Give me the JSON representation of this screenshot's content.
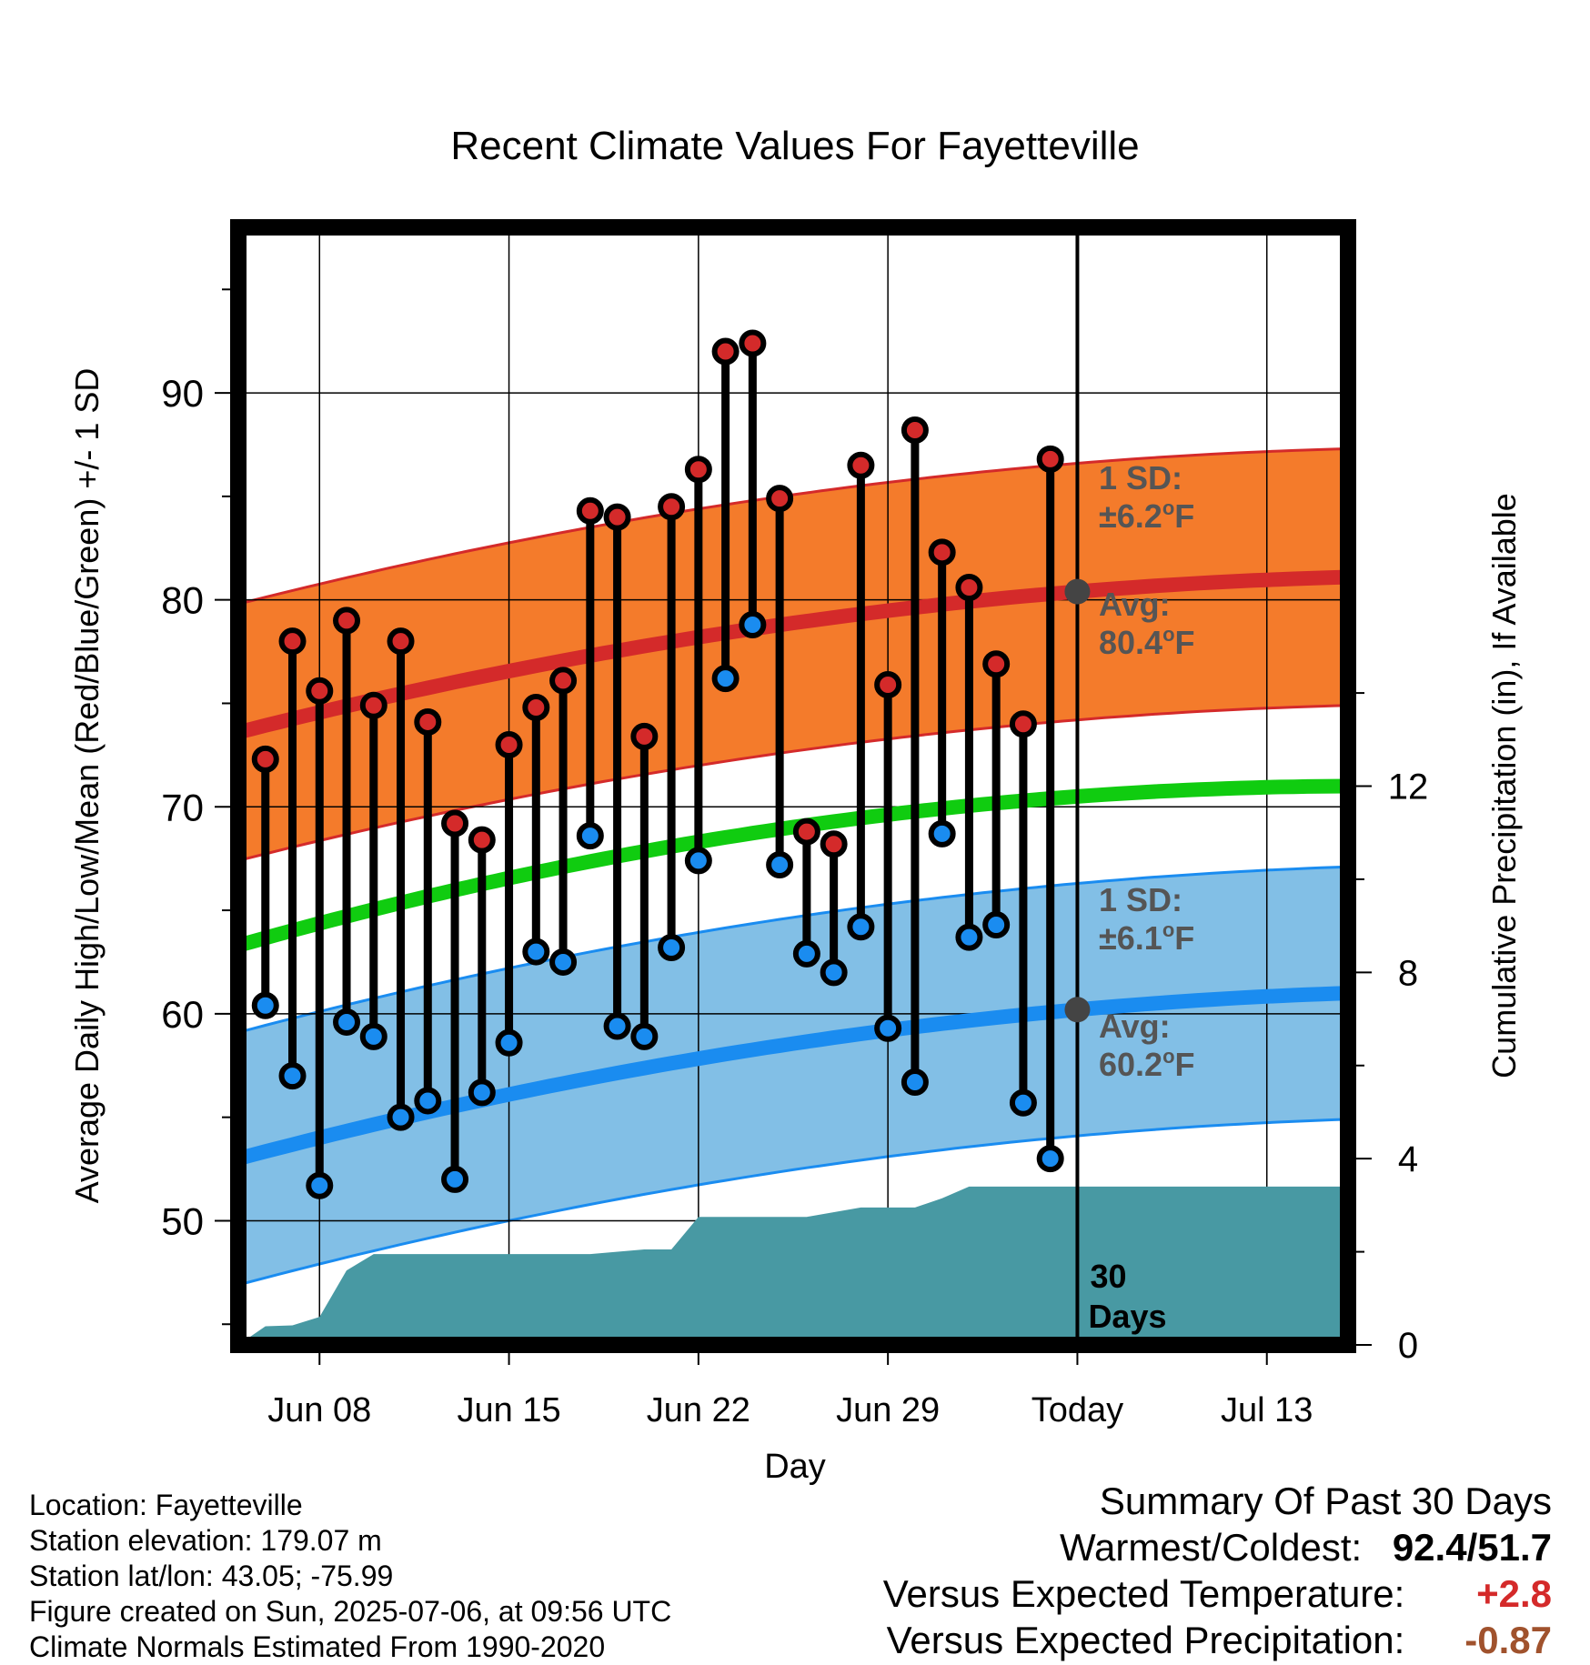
{
  "chart_data": {
    "type": "line",
    "title": "Recent Climate Values For Fayetteville",
    "xlabel": "Day",
    "ylabel": "Average Daily High/Low/Mean (Red/Blue/Green) +/- 1 SD",
    "y2label": "Cumulative Precipitation (in), If Available",
    "x_ticks": [
      "Jun 08",
      "Jun 15",
      "Jun 22",
      "Jun 29",
      "Today",
      "Jul 13"
    ],
    "y_ticks": [
      "50",
      "60",
      "70",
      "80",
      "90"
    ],
    "y2_ticks": [
      "0",
      "4",
      "8",
      "12"
    ],
    "ylim": [
      44,
      98
    ],
    "y2lim": [
      0,
      24
    ],
    "grid": true,
    "x_range_days": [
      -31,
      10
    ],
    "today_index": 0,
    "daily": {
      "day_offset": [
        -30,
        -29,
        -28,
        -27,
        -26,
        -25,
        -24,
        -23,
        -22,
        -21,
        -20,
        -19,
        -18,
        -17,
        -16,
        -15,
        -14,
        -13,
        -12,
        -11,
        -10,
        -9,
        -8,
        -7,
        -6,
        -5,
        -4,
        -3,
        -2,
        -1
      ],
      "high": [
        72.3,
        78.0,
        75.6,
        79.0,
        74.9,
        78.0,
        74.1,
        69.2,
        68.4,
        73.0,
        74.8,
        76.1,
        84.3,
        84.0,
        73.4,
        84.5,
        86.3,
        92.0,
        92.4,
        84.9,
        68.8,
        68.2,
        86.5,
        75.9,
        88.2,
        82.3,
        80.6,
        76.9,
        74.0,
        86.8
      ],
      "low": [
        60.4,
        57.0,
        51.7,
        59.6,
        58.9,
        55.0,
        55.8,
        52.0,
        56.2,
        58.6,
        63.0,
        62.5,
        68.6,
        59.4,
        58.9,
        63.2,
        67.4,
        76.2,
        78.8,
        67.2,
        62.9,
        62.0,
        64.2,
        59.3,
        56.7,
        68.7,
        63.7,
        64.3,
        55.7,
        53.0
      ]
    },
    "normals": {
      "high_mean": {
        "start": 73.6,
        "today": 80.4,
        "end": 81.1
      },
      "low_mean": {
        "start": 53.0,
        "today": 60.2,
        "end": 61.0
      },
      "daily_mean": {
        "start": 63.3,
        "today": 70.5,
        "end": 71.0
      },
      "high_sd": 6.2,
      "low_sd": 6.1
    },
    "precipitation": {
      "day_offset": [
        -31,
        -30,
        -29,
        -28,
        -27,
        -26,
        -25,
        -24,
        -22,
        -20,
        -18,
        -16,
        -15,
        -14,
        -13,
        -12,
        -10,
        -8,
        -7,
        -6,
        -5,
        -4,
        -2,
        0,
        10
      ],
      "cumulative": [
        0.0,
        0.4,
        0.42,
        0.6,
        1.6,
        1.95,
        1.95,
        1.95,
        1.95,
        1.95,
        1.95,
        2.05,
        2.05,
        2.75,
        2.75,
        2.75,
        2.75,
        2.95,
        2.95,
        2.95,
        3.15,
        3.4,
        3.4,
        3.4,
        3.4
      ]
    },
    "annotations": {
      "high_sd_label": "1 SD:",
      "high_sd_value": "±6.2",
      "high_avg_label": "Avg:",
      "high_avg_value": "80.4",
      "low_sd_label": "1 SD:",
      "low_sd_value": "±6.1",
      "low_avg_label": "Avg:",
      "low_avg_value": "60.2",
      "degree_unit": "o",
      "unit_letter": "F",
      "period_number": "30",
      "period_word": "Days"
    }
  },
  "colors": {
    "high_band": "#f47b2b",
    "high_line": "#d42a2a",
    "low_band": "#82bfe6",
    "low_line": "#1a8cf0",
    "mean_line": "#10cc10",
    "precip": "#4899a3",
    "high_dot": "#d42a2a",
    "low_dot": "#1a8cf0",
    "annotation": "#555555",
    "positive_anomaly": "#d42a2a",
    "negative_anomaly": "#a0522d"
  },
  "info": {
    "location": "Location: Fayetteville",
    "elevation": "Station elevation: 179.07 m",
    "latlon": "Station lat/lon: 43.05; -75.99",
    "created": "Figure created on Sun, 2025-07-06, at 09:56 UTC",
    "normals": "Climate Normals Estimated From 1990-2020"
  },
  "summary": {
    "title": "Summary Of Past 30 Days",
    "warm_cold_label": "Warmest/Coldest:",
    "warm_cold_value": "92.4/51.7",
    "temp_label": "Versus Expected Temperature:",
    "temp_value": "+2.8",
    "precip_label": "Versus Expected Precipitation:",
    "precip_value": "-0.87"
  }
}
